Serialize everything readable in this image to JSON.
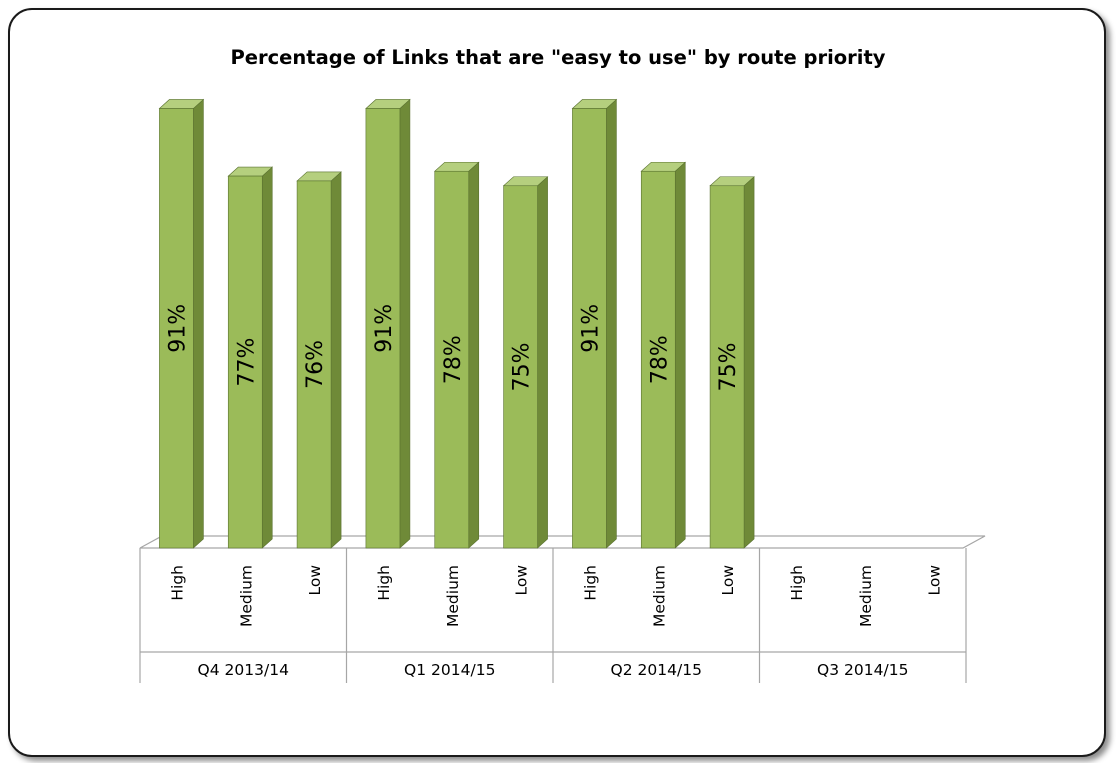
{
  "chart_data": {
    "type": "bar",
    "title": "Percentage of Links that are \"easy to use\" by route priority",
    "xlabel": "",
    "ylabel": "",
    "ylim": [
      0,
      100
    ],
    "grid": false,
    "legend": "none",
    "groups": [
      "Q4 2013/14",
      "Q1 2014/15",
      "Q2 2014/15",
      "Q3 2014/15"
    ],
    "categories": [
      "High",
      "Medium",
      "Low"
    ],
    "values": [
      [
        91,
        77,
        76
      ],
      [
        91,
        78,
        75
      ],
      [
        91,
        78,
        75
      ],
      [
        null,
        null,
        null
      ]
    ],
    "data_labels": [
      [
        "91%",
        "77%",
        "76%"
      ],
      [
        "91%",
        "78%",
        "75%"
      ],
      [
        "91%",
        "78%",
        "75%"
      ],
      [
        "",
        "",
        ""
      ]
    ],
    "colors": {
      "front": "#9bbb59",
      "side": "#6f8a38",
      "top": "#b5cf7e",
      "outline": "#5a7230",
      "axis": "#a6a6a6"
    }
  }
}
